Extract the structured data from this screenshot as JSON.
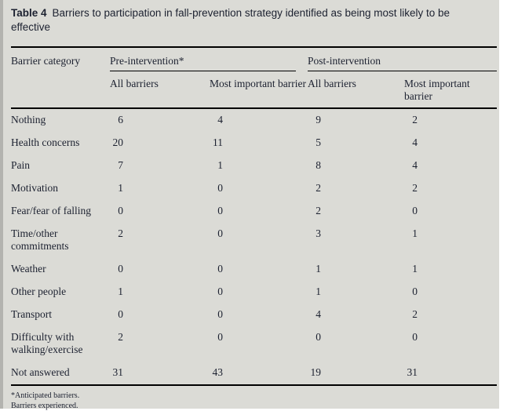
{
  "title": {
    "label": "Table 4",
    "text": "Barriers to participation in fall-prevention strategy identified as being most likely to be effective"
  },
  "table": {
    "row_header": "Barrier category",
    "col_groups": [
      {
        "label": "Pre-intervention*"
      },
      {
        "label": "Post-intervention"
      }
    ],
    "sub_headers": [
      "All barriers",
      "Most important barrier",
      "All barriers",
      "Most important barrier"
    ],
    "rows": [
      {
        "category": "Nothing",
        "values": [
          6,
          4,
          9,
          2
        ]
      },
      {
        "category": "Health concerns",
        "values": [
          20,
          11,
          5,
          4
        ]
      },
      {
        "category": "Pain",
        "values": [
          7,
          1,
          8,
          4
        ]
      },
      {
        "category": "Motivation",
        "values": [
          1,
          0,
          2,
          2
        ]
      },
      {
        "category": "Fear/fear of falling",
        "values": [
          0,
          0,
          2,
          0
        ]
      },
      {
        "category": "Time/other commitments",
        "values": [
          2,
          0,
          3,
          1
        ]
      },
      {
        "category": "Weather",
        "values": [
          0,
          0,
          1,
          1
        ]
      },
      {
        "category": "Other people",
        "values": [
          1,
          0,
          1,
          0
        ]
      },
      {
        "category": "Transport",
        "values": [
          0,
          0,
          4,
          2
        ]
      },
      {
        "category": "Difficulty with walking/exercise",
        "values": [
          2,
          0,
          0,
          0
        ]
      },
      {
        "category": "Not answered",
        "values": [
          31,
          43,
          19,
          31
        ]
      }
    ],
    "footnotes": [
      "*Anticipated barriers.",
      "Barriers experienced."
    ]
  },
  "colors": {
    "background": "#dbdbd6",
    "left_strip": "#b3b3af",
    "text": "#1c2130",
    "rule": "#000000"
  }
}
